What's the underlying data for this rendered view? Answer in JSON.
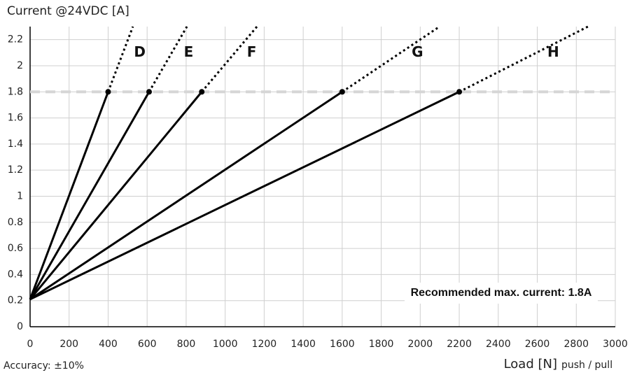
{
  "chart_data": {
    "type": "line",
    "y_axis_title": "Current @24VDC [A]",
    "x_axis_title": "Load [N]",
    "x_axis_subtitle": "push / pull",
    "footnote": "Accuracy: ±10%",
    "annotation": "Recommended max. current: 1.8A",
    "reference_line": {
      "value": 1.8,
      "color": "#d6d6d6"
    },
    "xlim": [
      0,
      3000
    ],
    "ylim": [
      0,
      2.3
    ],
    "xticks": [
      0,
      200,
      400,
      600,
      800,
      1000,
      1200,
      1400,
      1600,
      1800,
      2000,
      2200,
      2400,
      2600,
      2800,
      3000
    ],
    "yticks": [
      0,
      0.2,
      0.4,
      0.6,
      0.8,
      1,
      1.2,
      1.4,
      1.6,
      1.8,
      2,
      2.2
    ],
    "grid": true,
    "series": [
      {
        "name": "D",
        "color": "#000000",
        "x": [
          0,
          400
        ],
        "values": [
          0.21,
          1.8
        ],
        "extension_x": [
          400,
          527
        ],
        "extension_values": [
          1.8,
          2.3
        ]
      },
      {
        "name": "E",
        "color": "#000000",
        "x": [
          0,
          610
        ],
        "values": [
          0.21,
          1.8
        ],
        "extension_x": [
          610,
          804
        ],
        "extension_values": [
          1.8,
          2.3
        ]
      },
      {
        "name": "F",
        "color": "#000000",
        "x": [
          0,
          880
        ],
        "values": [
          0.21,
          1.8
        ],
        "extension_x": [
          880,
          1163
        ],
        "extension_values": [
          1.8,
          2.3
        ]
      },
      {
        "name": "G",
        "color": "#000000",
        "x": [
          0,
          1600
        ],
        "values": [
          0.21,
          1.8
        ],
        "extension_x": [
          1600,
          2099
        ],
        "extension_values": [
          1.8,
          2.3
        ]
      },
      {
        "name": "H",
        "color": "#000000",
        "x": [
          0,
          2200
        ],
        "values": [
          0.21,
          1.8
        ],
        "extension_x": [
          2200,
          2860
        ],
        "extension_values": [
          1.8,
          2.3
        ]
      }
    ]
  }
}
